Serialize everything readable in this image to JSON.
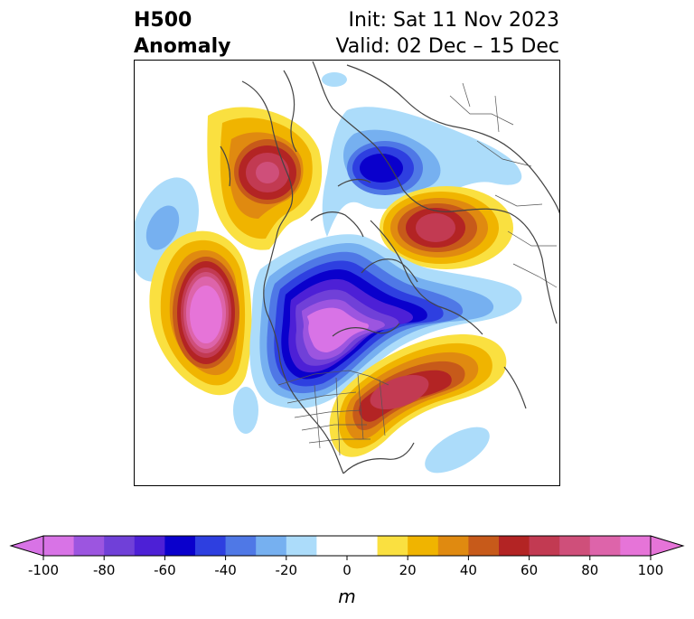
{
  "title": {
    "left_line1": "H500",
    "left_line2": "Anomaly",
    "init": "Init: Sat 11 Nov 2023",
    "valid": "Valid: 02 Dec – 15 Dec"
  },
  "colorbar": {
    "unit_label": "m",
    "ticks": [
      "-100",
      "-80",
      "-60",
      "-40",
      "-20",
      "0",
      "20",
      "40",
      "60",
      "80",
      "100"
    ],
    "colors": [
      "#d873e6",
      "#9c55e0",
      "#7040d8",
      "#4d20d6",
      "#0a00cc",
      "#2e3fe0",
      "#4f78e6",
      "#76b0f0",
      "#acdcfa",
      "#ffffff",
      "#ffffff",
      "#fae040",
      "#f0b400",
      "#e08a10",
      "#c75a1a",
      "#b32424",
      "#c23a52",
      "#cf4f7a",
      "#dd64aa",
      "#e674d8"
    ],
    "extend_low_color": "#d873e6",
    "extend_high_color": "#e674d8"
  },
  "map": {
    "coastline_color": "#444444",
    "border_color": "#555555"
  }
}
